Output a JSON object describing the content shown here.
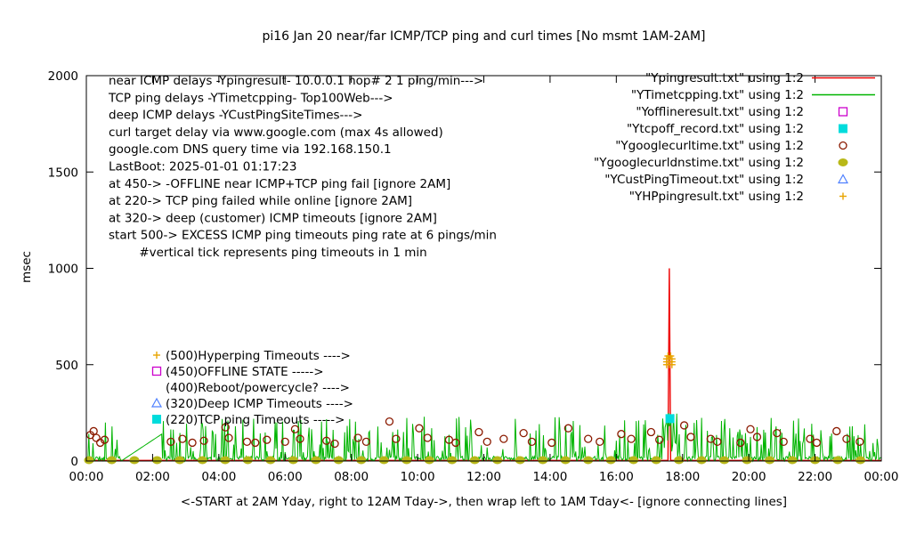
{
  "title": "pi16 Jan 20  near/far ICMP/TCP ping and curl times [No msmt 1AM-2AM]",
  "ylabel": "msec",
  "xlabel": "<-START at 2AM Yday, right to 12AM Tday->, then wrap left to 1AM Tday<- [ignore connecting lines]",
  "info_lines": [
    "near ICMP delays -Ypingresult- 10.0.0.1 hop# 2 1 ping/min--->",
    "TCP ping delays -YTimetcpping- Top100Web--->",
    "deep ICMP delays -YCustPingSiteTimes--->",
    "curl target delay via www.google.com (max 4s allowed)",
    "google.com DNS query time via 192.168.150.1",
    "LastBoot: 2025-01-01 01:17:23",
    "at 450-> -OFFLINE near ICMP+TCP ping fail [ignore 2AM]",
    "at 220-> TCP ping failed while online [ignore 2AM]",
    "at 320-> deep (customer) ICMP timeouts [ignore 2AM]",
    "start 500-> EXCESS ICMP ping timeouts ping rate at 6 pings/min",
    "        #vertical tick represents ping timeouts in 1 min"
  ],
  "legend": [
    {
      "label": "\"Ypingresult.txt\" using 1:2",
      "marker": "line",
      "color": "#ee0000"
    },
    {
      "label": "\"YTimetcpping.txt\" using 1:2",
      "marker": "line",
      "color": "#00b400"
    },
    {
      "label": "\"Yofflineresult.txt\" using 1:2",
      "marker": "open-square",
      "color": "#cc00cc"
    },
    {
      "label": "\"Ytcpoff_record.txt\" using 1:2",
      "marker": "filled-square",
      "color": "#00dcdc"
    },
    {
      "label": "\"Ygooglecurltime.txt\" using 1:2",
      "marker": "open-circle",
      "color": "#8b1a00"
    },
    {
      "label": "\"Ygooglecurldnstime.txt\" using 1:2",
      "marker": "filled-circle",
      "color": "#b8b818"
    },
    {
      "label": "\"YCustPingTimeout.txt\" using 1:2",
      "marker": "open-triangle",
      "color": "#4f81ff"
    },
    {
      "label": "\"YHPpingresult.txt\" using 1:2",
      "marker": "plus",
      "color": "#e8a400"
    }
  ],
  "level_annotations": [
    {
      "marker": "plus",
      "color": "#e8a400",
      "text": "(500)Hyperping Timeouts ---->",
      "level": 500
    },
    {
      "marker": "open-square",
      "color": "#cc00cc",
      "text": "(450)OFFLINE STATE ----->",
      "level": 450
    },
    {
      "marker": "none",
      "color": "#000000",
      "text": "(400)Reboot/powercycle? ---->",
      "level": 400
    },
    {
      "marker": "open-triangle",
      "color": "#4f81ff",
      "text": "(320)Deep ICMP Timeouts ---->",
      "level": 320
    },
    {
      "marker": "filled-square",
      "color": "#00dcdc",
      "text": "(220)TCP ping Timeouts ----->",
      "level": 220
    }
  ],
  "chart_data": {
    "type": "line",
    "title": "pi16 Jan 20  near/far ICMP/TCP ping and curl times [No msmt 1AM-2AM]",
    "xlabel_hours": [
      0,
      24
    ],
    "ylim": [
      0,
      2000
    ],
    "yticks": [
      0,
      500,
      1000,
      1500,
      2000
    ],
    "xticks": [
      "00:00",
      "02:00",
      "04:00",
      "06:00",
      "08:00",
      "10:00",
      "12:00",
      "14:00",
      "16:00",
      "18:00",
      "20:00",
      "22:00",
      "00:00"
    ],
    "grid": false,
    "legend_position": "top-right",
    "series": [
      {
        "name": "near ICMP ping (Ypingresult)",
        "type": "line",
        "color": "#ee0000",
        "points": [
          [
            0,
            3
          ],
          [
            17.56,
            3
          ],
          [
            17.6,
            1000
          ],
          [
            17.64,
            3
          ],
          [
            24,
            3
          ]
        ]
      },
      {
        "name": "TCP ping (YTimetcpping)",
        "type": "noisy-line",
        "color": "#00b400",
        "noise": {
          "seed": 11,
          "points_per_hour": 40,
          "base_max": 25,
          "spike_prob": 0.22,
          "spike_min": 40,
          "spike_max": 230,
          "burst": {
            "range": [
              17.4,
              17.85
            ],
            "min": 40,
            "max": 250
          }
        },
        "wrap_artifact": {
          "from": [
            1.05,
            0
          ],
          "to": [
            2.28,
            140
          ]
        }
      },
      {
        "name": "google curl time (Ygooglecurltime)",
        "type": "scatter",
        "marker": "open-circle",
        "color": "#8b1a00",
        "points": [
          [
            0.12,
            135
          ],
          [
            0.22,
            155
          ],
          [
            0.3,
            120
          ],
          [
            0.42,
            95
          ],
          [
            0.55,
            110
          ],
          [
            2.55,
            100
          ],
          [
            2.9,
            115
          ],
          [
            3.2,
            95
          ],
          [
            3.55,
            105
          ],
          [
            4.2,
            175
          ],
          [
            4.3,
            120
          ],
          [
            4.85,
            100
          ],
          [
            5.1,
            95
          ],
          [
            5.45,
            110
          ],
          [
            6.0,
            100
          ],
          [
            6.3,
            165
          ],
          [
            6.45,
            115
          ],
          [
            7.25,
            105
          ],
          [
            7.5,
            90
          ],
          [
            8.2,
            120
          ],
          [
            8.45,
            100
          ],
          [
            9.15,
            205
          ],
          [
            9.35,
            115
          ],
          [
            10.05,
            170
          ],
          [
            10.3,
            120
          ],
          [
            10.95,
            110
          ],
          [
            11.15,
            95
          ],
          [
            11.85,
            150
          ],
          [
            12.1,
            100
          ],
          [
            12.6,
            115
          ],
          [
            13.2,
            145
          ],
          [
            13.45,
            100
          ],
          [
            14.05,
            95
          ],
          [
            14.55,
            170
          ],
          [
            15.15,
            115
          ],
          [
            15.5,
            100
          ],
          [
            16.15,
            140
          ],
          [
            16.45,
            115
          ],
          [
            17.05,
            150
          ],
          [
            17.3,
            110
          ],
          [
            18.05,
            185
          ],
          [
            18.25,
            125
          ],
          [
            18.85,
            115
          ],
          [
            19.05,
            100
          ],
          [
            19.75,
            95
          ],
          [
            20.05,
            165
          ],
          [
            20.25,
            125
          ],
          [
            20.85,
            145
          ],
          [
            21.05,
            100
          ],
          [
            21.85,
            115
          ],
          [
            22.05,
            95
          ],
          [
            22.65,
            155
          ],
          [
            22.95,
            115
          ],
          [
            23.35,
            100
          ]
        ]
      },
      {
        "name": "google DNS query time (Ygooglecurldnstime)",
        "type": "scatter-generated",
        "marker": "filled-circle",
        "color": "#b8b818",
        "gen": {
          "start": 0.08,
          "interval": 0.685,
          "value": 0
        }
      },
      {
        "name": "TCP fail while online (Ytcpoff_record)",
        "type": "scatter",
        "marker": "filled-square",
        "color": "#00dcdc",
        "points": [
          [
            17.62,
            220
          ]
        ]
      },
      {
        "name": "Hyperping timeouts (YHPpingresult)",
        "type": "scatter",
        "marker": "plus",
        "color": "#e8a400",
        "points": [
          [
            17.52,
            500
          ],
          [
            17.6,
            500
          ],
          [
            17.68,
            500
          ],
          [
            17.52,
            515
          ],
          [
            17.6,
            515
          ],
          [
            17.68,
            515
          ],
          [
            17.52,
            530
          ],
          [
            17.6,
            530
          ],
          [
            17.68,
            530
          ],
          [
            17.56,
            545
          ],
          [
            17.64,
            545
          ]
        ]
      },
      {
        "name": "OFFLINE state (Yofflineresult)",
        "type": "scatter",
        "marker": "open-square",
        "color": "#cc00cc",
        "points": []
      },
      {
        "name": "Deep ICMP timeouts (YCustPingTimeout)",
        "type": "scatter",
        "marker": "open-triangle",
        "color": "#4f81ff",
        "points": []
      }
    ]
  }
}
